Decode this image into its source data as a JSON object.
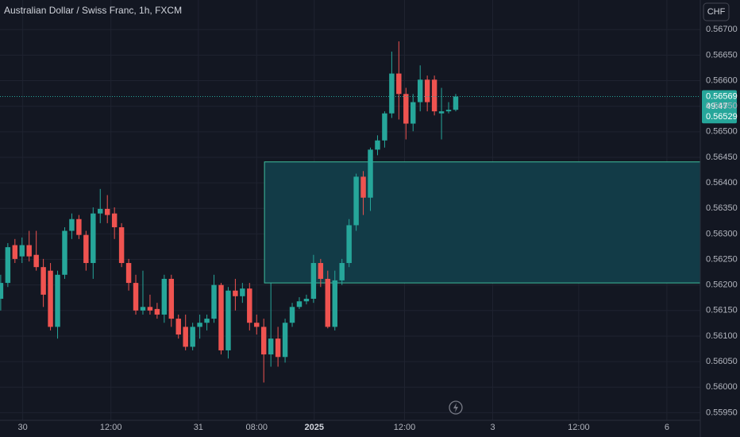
{
  "chart_data": {
    "type": "candlestick",
    "title": "Australian Dollar / Swiss Franc, 1h, FXCM",
    "currency": "CHF",
    "countdown": "49:47",
    "lower_price_label": 0.56529,
    "up_color": "#26a69a",
    "down_color": "#ef5350",
    "grid": true,
    "x": [
      0,
      1,
      2,
      3,
      4,
      5,
      6,
      7,
      8,
      9,
      10,
      11,
      12,
      13,
      14,
      15,
      16,
      17,
      18,
      19,
      20,
      21,
      22,
      23,
      24,
      25,
      26,
      27,
      28,
      29,
      30,
      31,
      32,
      33,
      34,
      35,
      36,
      37,
      38,
      39,
      40,
      41,
      42,
      43,
      44,
      45,
      46,
      47,
      48,
      49,
      50,
      51,
      52,
      53,
      54,
      55,
      56,
      57,
      58,
      59,
      60,
      61,
      62,
      63,
      64
    ],
    "open": [
      0.56173,
      0.56204,
      0.56278,
      0.56256,
      0.56278,
      0.56259,
      0.56235,
      0.56228,
      0.56118,
      0.5622,
      0.56306,
      0.56329,
      0.56298,
      0.56243,
      0.5634,
      0.56349,
      0.5634,
      0.56313,
      0.56243,
      0.56204,
      0.5615,
      0.56157,
      0.56153,
      0.56142,
      0.56212,
      0.56134,
      0.56118,
      0.56079,
      0.56118,
      0.56126,
      0.56134,
      0.562,
      0.56072,
      0.56189,
      0.56178,
      0.56193,
      0.56126,
      0.56118,
      0.56064,
      0.56095,
      0.56059,
      0.56126,
      0.56157,
      0.56168,
      0.56173,
      0.56243,
      0.56212,
      0.56118,
      0.56209,
      0.56243,
      0.56317,
      0.56412,
      0.56371,
      0.56465,
      0.56483,
      0.56536,
      0.56614,
      0.56574,
      0.56516,
      0.56558,
      0.56602,
      0.56602,
      0.56536,
      0.5654,
      0.56543
    ],
    "high": [
      0.5622,
      0.56282,
      0.5629,
      0.56293,
      0.56306,
      0.56306,
      0.56251,
      0.56243,
      0.56228,
      0.56313,
      0.5634,
      0.56337,
      0.56306,
      0.56352,
      0.56388,
      0.56376,
      0.56352,
      0.56321,
      0.56251,
      0.5622,
      0.56228,
      0.56181,
      0.56165,
      0.5622,
      0.5622,
      0.56142,
      0.56142,
      0.56126,
      0.56142,
      0.56142,
      0.5622,
      0.56204,
      0.56196,
      0.56212,
      0.56204,
      0.56204,
      0.56142,
      0.56134,
      0.56204,
      0.56118,
      0.56134,
      0.56165,
      0.56176,
      0.56181,
      0.56259,
      0.56251,
      0.56228,
      0.56228,
      0.56251,
      0.56329,
      0.56418,
      0.56423,
      0.56469,
      0.56493,
      0.5654,
      0.56657,
      0.56677,
      0.56586,
      0.56574,
      0.5663,
      0.5661,
      0.5661,
      0.56586,
      0.56558,
      0.56574
    ],
    "low": [
      0.5615,
      0.56196,
      0.56243,
      0.56243,
      0.56246,
      0.56228,
      0.56157,
      0.56111,
      0.56095,
      0.56212,
      0.5629,
      0.5629,
      0.56228,
      0.56212,
      0.56321,
      0.56321,
      0.5629,
      0.56235,
      0.56189,
      0.56142,
      0.56142,
      0.56142,
      0.56134,
      0.56126,
      0.56118,
      0.56095,
      0.56072,
      0.56072,
      0.56095,
      0.56111,
      0.56126,
      0.56064,
      0.56056,
      0.5615,
      0.56165,
      0.56111,
      0.56103,
      0.56009,
      0.5604,
      0.5604,
      0.56048,
      0.56118,
      0.56153,
      0.56162,
      0.56165,
      0.56196,
      0.56115,
      0.56111,
      0.562,
      0.56235,
      0.56306,
      0.56337,
      0.56345,
      0.56454,
      0.56469,
      0.56527,
      0.56524,
      0.56485,
      0.56501,
      0.5654,
      0.5654,
      0.56532,
      0.56485,
      0.56536,
      0.5654
    ],
    "close": [
      0.56204,
      0.56274,
      0.56251,
      0.56278,
      0.56256,
      0.56235,
      0.56181,
      0.56118,
      0.5622,
      0.56306,
      0.56329,
      0.56298,
      0.56243,
      0.5634,
      0.56349,
      0.56337,
      0.56313,
      0.56243,
      0.56204,
      0.5615,
      0.56157,
      0.5615,
      0.56142,
      0.56212,
      0.56134,
      0.56103,
      0.56079,
      0.56118,
      0.56126,
      0.56134,
      0.562,
      0.56072,
      0.56189,
      0.56178,
      0.56193,
      0.56126,
      0.56118,
      0.56064,
      0.56095,
      0.56059,
      0.56126,
      0.56157,
      0.56168,
      0.56173,
      0.56243,
      0.56212,
      0.56118,
      0.56209,
      0.56243,
      0.56317,
      0.56412,
      0.56371,
      0.56465,
      0.56483,
      0.56536,
      0.56614,
      0.56574,
      0.56516,
      0.56558,
      0.56602,
      0.56558,
      0.5654,
      0.5654,
      0.56543,
      0.56569
    ],
    "zone": {
      "x_start": 37.1,
      "top": 0.56441,
      "bottom": 0.56204,
      "fill": "#123b47",
      "stroke": "#3fbf9f"
    },
    "xlim": [
      -0.1,
      98.4
    ],
    "xticks": [
      {
        "value": 3.1,
        "label": "30"
      },
      {
        "value": 15.5,
        "label": "12:00"
      },
      {
        "value": 27.8,
        "label": "31"
      },
      {
        "value": 36.0,
        "label": "08:00"
      },
      {
        "value": 44.1,
        "label": "2025",
        "bold": true
      },
      {
        "value": 56.8,
        "label": "12:00"
      },
      {
        "value": 69.2,
        "label": "3"
      },
      {
        "value": 81.3,
        "label": "12:00"
      },
      {
        "value": 93.7,
        "label": "6"
      }
    ],
    "ylim": [
      0.55935,
      0.56758
    ],
    "yticks": [
      {
        "value": 0.567,
        "label": "0.56700"
      },
      {
        "value": 0.5665,
        "label": "0.56650"
      },
      {
        "value": 0.566,
        "label": "0.56600"
      },
      {
        "value": 0.5655,
        "label": "0.56550"
      },
      {
        "value": 0.565,
        "label": "0.56500"
      },
      {
        "value": 0.5645,
        "label": "0.56450"
      },
      {
        "value": 0.564,
        "label": "0.56400"
      },
      {
        "value": 0.5635,
        "label": "0.56350"
      },
      {
        "value": 0.563,
        "label": "0.56300"
      },
      {
        "value": 0.5625,
        "label": "0.56250"
      },
      {
        "value": 0.562,
        "label": "0.56200"
      },
      {
        "value": 0.5615,
        "label": "0.56150"
      },
      {
        "value": 0.561,
        "label": "0.56100"
      },
      {
        "value": 0.5605,
        "label": "0.56050"
      },
      {
        "value": 0.56,
        "label": "0.56000"
      },
      {
        "value": 0.5595,
        "label": "0.55950"
      }
    ]
  }
}
